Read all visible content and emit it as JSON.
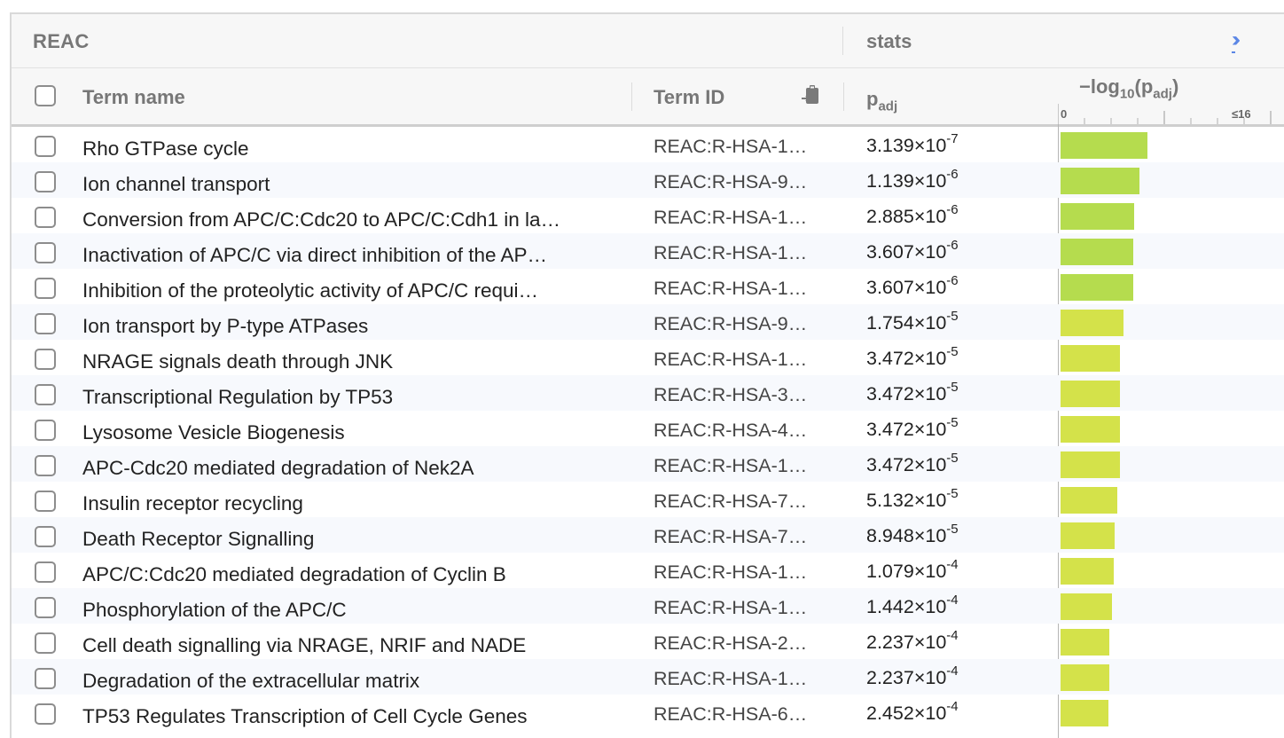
{
  "group": {
    "source": "REAC",
    "stats_label": "stats",
    "expand_icon": "double-chevron-right-icon"
  },
  "columns": {
    "term_name": "Term name",
    "term_id": "Term ID",
    "padj_base": "p",
    "padj_sub": "adj",
    "log_prefix": "−log",
    "log_sub": "10",
    "log_p": "(p",
    "log_close": ")",
    "axis_min": "0",
    "axis_max": "≤16"
  },
  "axis": {
    "min": 0,
    "max": 16
  },
  "colors": {
    "bar_strong": "#b5dc4e",
    "bar_weak": "#d4e24a",
    "link": "#5b86e5"
  },
  "rows": [
    {
      "name": "Rho GTPase cycle",
      "id": "REAC:R-HSA-1…",
      "mantissa": "3.139",
      "exp": "-7",
      "value": 6.5
    },
    {
      "name": "Ion channel transport",
      "id": "REAC:R-HSA-9…",
      "mantissa": "1.139",
      "exp": "-6",
      "value": 5.94
    },
    {
      "name": "Conversion from APC/C:Cdc20 to APC/C:Cdh1 in la…",
      "id": "REAC:R-HSA-1…",
      "mantissa": "2.885",
      "exp": "-6",
      "value": 5.54
    },
    {
      "name": "Inactivation of APC/C via direct inhibition of the AP…",
      "id": "REAC:R-HSA-1…",
      "mantissa": "3.607",
      "exp": "-6",
      "value": 5.44
    },
    {
      "name": "Inhibition of the proteolytic activity of APC/C requi…",
      "id": "REAC:R-HSA-1…",
      "mantissa": "3.607",
      "exp": "-6",
      "value": 5.44
    },
    {
      "name": "Ion transport by P-type ATPases",
      "id": "REAC:R-HSA-9…",
      "mantissa": "1.754",
      "exp": "-5",
      "value": 4.76
    },
    {
      "name": "NRAGE signals death through JNK",
      "id": "REAC:R-HSA-1…",
      "mantissa": "3.472",
      "exp": "-5",
      "value": 4.46
    },
    {
      "name": "Transcriptional Regulation by TP53",
      "id": "REAC:R-HSA-3…",
      "mantissa": "3.472",
      "exp": "-5",
      "value": 4.46
    },
    {
      "name": "Lysosome Vesicle Biogenesis",
      "id": "REAC:R-HSA-4…",
      "mantissa": "3.472",
      "exp": "-5",
      "value": 4.46
    },
    {
      "name": "APC-Cdc20 mediated degradation of Nek2A",
      "id": "REAC:R-HSA-1…",
      "mantissa": "3.472",
      "exp": "-5",
      "value": 4.46
    },
    {
      "name": "Insulin receptor recycling",
      "id": "REAC:R-HSA-7…",
      "mantissa": "5.132",
      "exp": "-5",
      "value": 4.29
    },
    {
      "name": "Death Receptor Signalling",
      "id": "REAC:R-HSA-7…",
      "mantissa": "8.948",
      "exp": "-5",
      "value": 4.05
    },
    {
      "name": "APC/C:Cdc20 mediated degradation of Cyclin B",
      "id": "REAC:R-HSA-1…",
      "mantissa": "1.079",
      "exp": "-4",
      "value": 3.97
    },
    {
      "name": "Phosphorylation of the APC/C",
      "id": "REAC:R-HSA-1…",
      "mantissa": "1.442",
      "exp": "-4",
      "value": 3.84
    },
    {
      "name": "Cell death signalling via NRAGE, NRIF and NADE",
      "id": "REAC:R-HSA-2…",
      "mantissa": "2.237",
      "exp": "-4",
      "value": 3.65
    },
    {
      "name": "Degradation of the extracellular matrix",
      "id": "REAC:R-HSA-1…",
      "mantissa": "2.237",
      "exp": "-4",
      "value": 3.65
    },
    {
      "name": "TP53 Regulates Transcription of Cell Cycle Genes",
      "id": "REAC:R-HSA-6…",
      "mantissa": "2.452",
      "exp": "-4",
      "value": 3.61
    }
  ]
}
